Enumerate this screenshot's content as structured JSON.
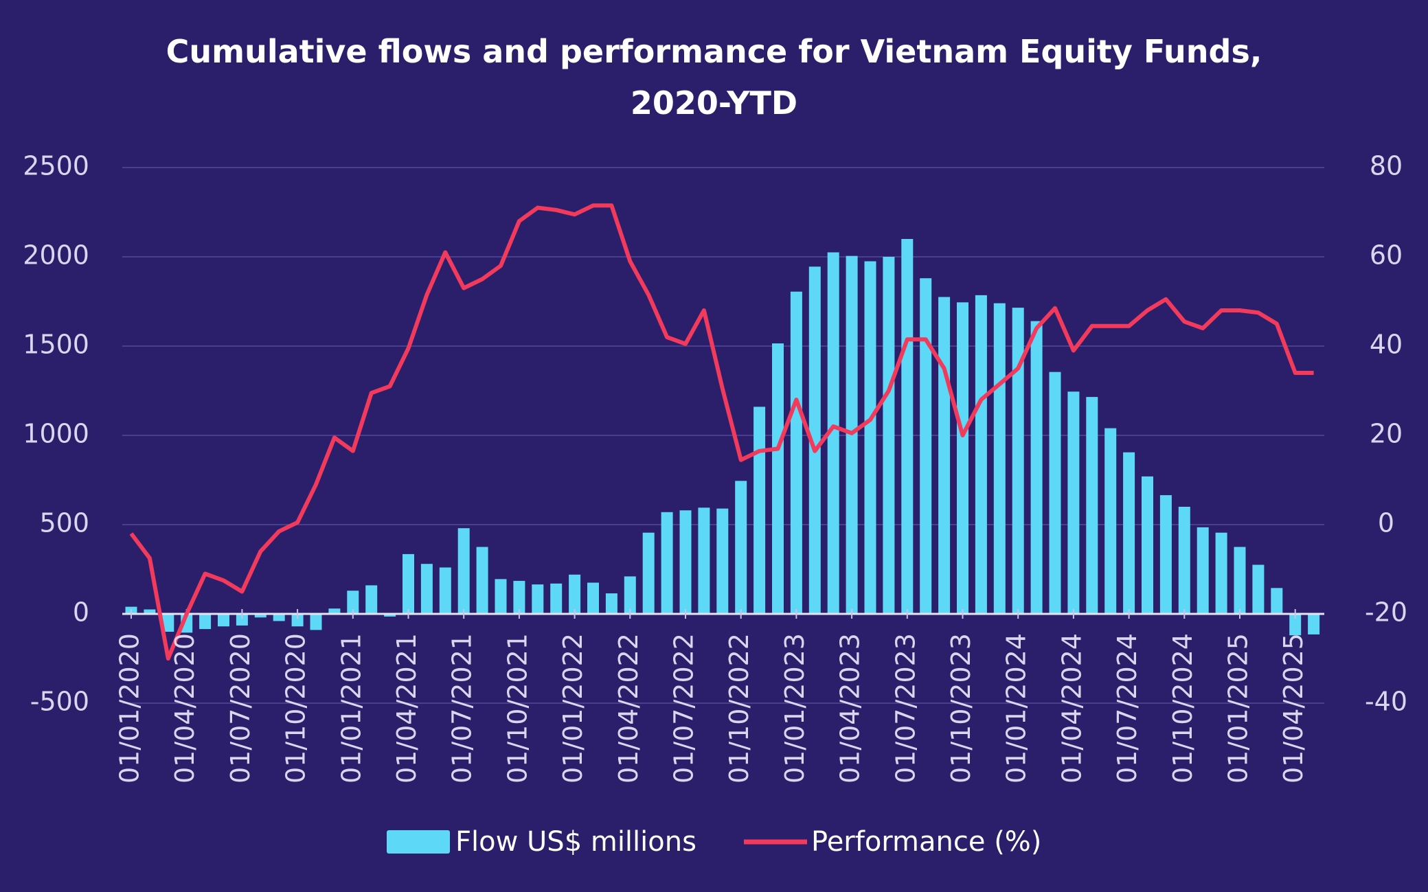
{
  "chart_data": {
    "type": "bar+line",
    "title_line1": "Cumulative flows and performance for Vietnam Equity Funds,",
    "title_line2": "2020-YTD",
    "left_axis": {
      "ylim": [
        -500,
        2500
      ],
      "ticks": [
        "2500",
        "2000",
        "1500",
        "1000",
        "500",
        "0",
        "-500"
      ],
      "tick_values": [
        2500,
        2000,
        1500,
        1000,
        500,
        0,
        -500
      ]
    },
    "right_axis": {
      "ylim": [
        -40,
        80
      ],
      "ticks": [
        "80",
        "60",
        "40",
        "20",
        "0",
        "-20",
        "-40"
      ],
      "tick_values": [
        80,
        60,
        40,
        20,
        0,
        -20,
        -40
      ]
    },
    "x_tick_labels": [
      "01/01/2020",
      "01/04/2020",
      "01/07/2020",
      "01/10/2020",
      "01/01/2021",
      "01/04/2021",
      "01/07/2021",
      "01/10/2021",
      "01/01/2022",
      "01/04/2022",
      "01/07/2022",
      "01/10/2022",
      "01/01/2023",
      "01/04/2023",
      "01/07/2023",
      "01/10/2023",
      "01/01/2024",
      "01/04/2024",
      "01/07/2024",
      "01/10/2024",
      "01/01/2025",
      "01/04/2025"
    ],
    "months": 65,
    "series": [
      {
        "name": "Flow US$ millions",
        "type": "bar",
        "axis": "left",
        "color": "#5dd9f7",
        "values": [
          40,
          25,
          -100,
          -105,
          -85,
          -70,
          -65,
          -20,
          -40,
          -70,
          -90,
          30,
          130,
          160,
          -15,
          335,
          280,
          260,
          480,
          375,
          195,
          185,
          165,
          170,
          220,
          175,
          115,
          210,
          455,
          570,
          580,
          595,
          590,
          745,
          1160,
          1515,
          1805,
          1945,
          2025,
          2005,
          1975,
          2000,
          2100,
          1880,
          1775,
          1745,
          1785,
          1740,
          1715,
          1640,
          1355,
          1245,
          1215,
          1040,
          905,
          770,
          665,
          600,
          485,
          455,
          375,
          275,
          145,
          -120,
          -115
        ]
      },
      {
        "name": "Performance (%)",
        "type": "line",
        "axis": "right",
        "color": "#f23a5c",
        "values": [
          -2,
          -7.5,
          -30,
          -20,
          -11,
          -12.5,
          -15,
          -6,
          -1.5,
          0.5,
          9,
          19.5,
          16.5,
          29.5,
          31,
          39.5,
          51.5,
          61,
          53,
          55,
          58,
          68,
          71,
          70.5,
          69.5,
          71.5,
          71.5,
          59,
          51.5,
          42,
          40.5,
          48,
          30.5,
          14.5,
          16.5,
          17,
          28,
          16.5,
          22,
          20.5,
          23.5,
          30,
          41.5,
          41.5,
          35,
          20,
          28,
          31.5,
          35,
          44,
          48.5,
          39,
          44.5,
          44.5,
          44.5,
          48,
          50.5,
          45.5,
          44,
          48,
          48,
          47.5,
          45,
          34,
          34
        ]
      }
    ]
  }
}
